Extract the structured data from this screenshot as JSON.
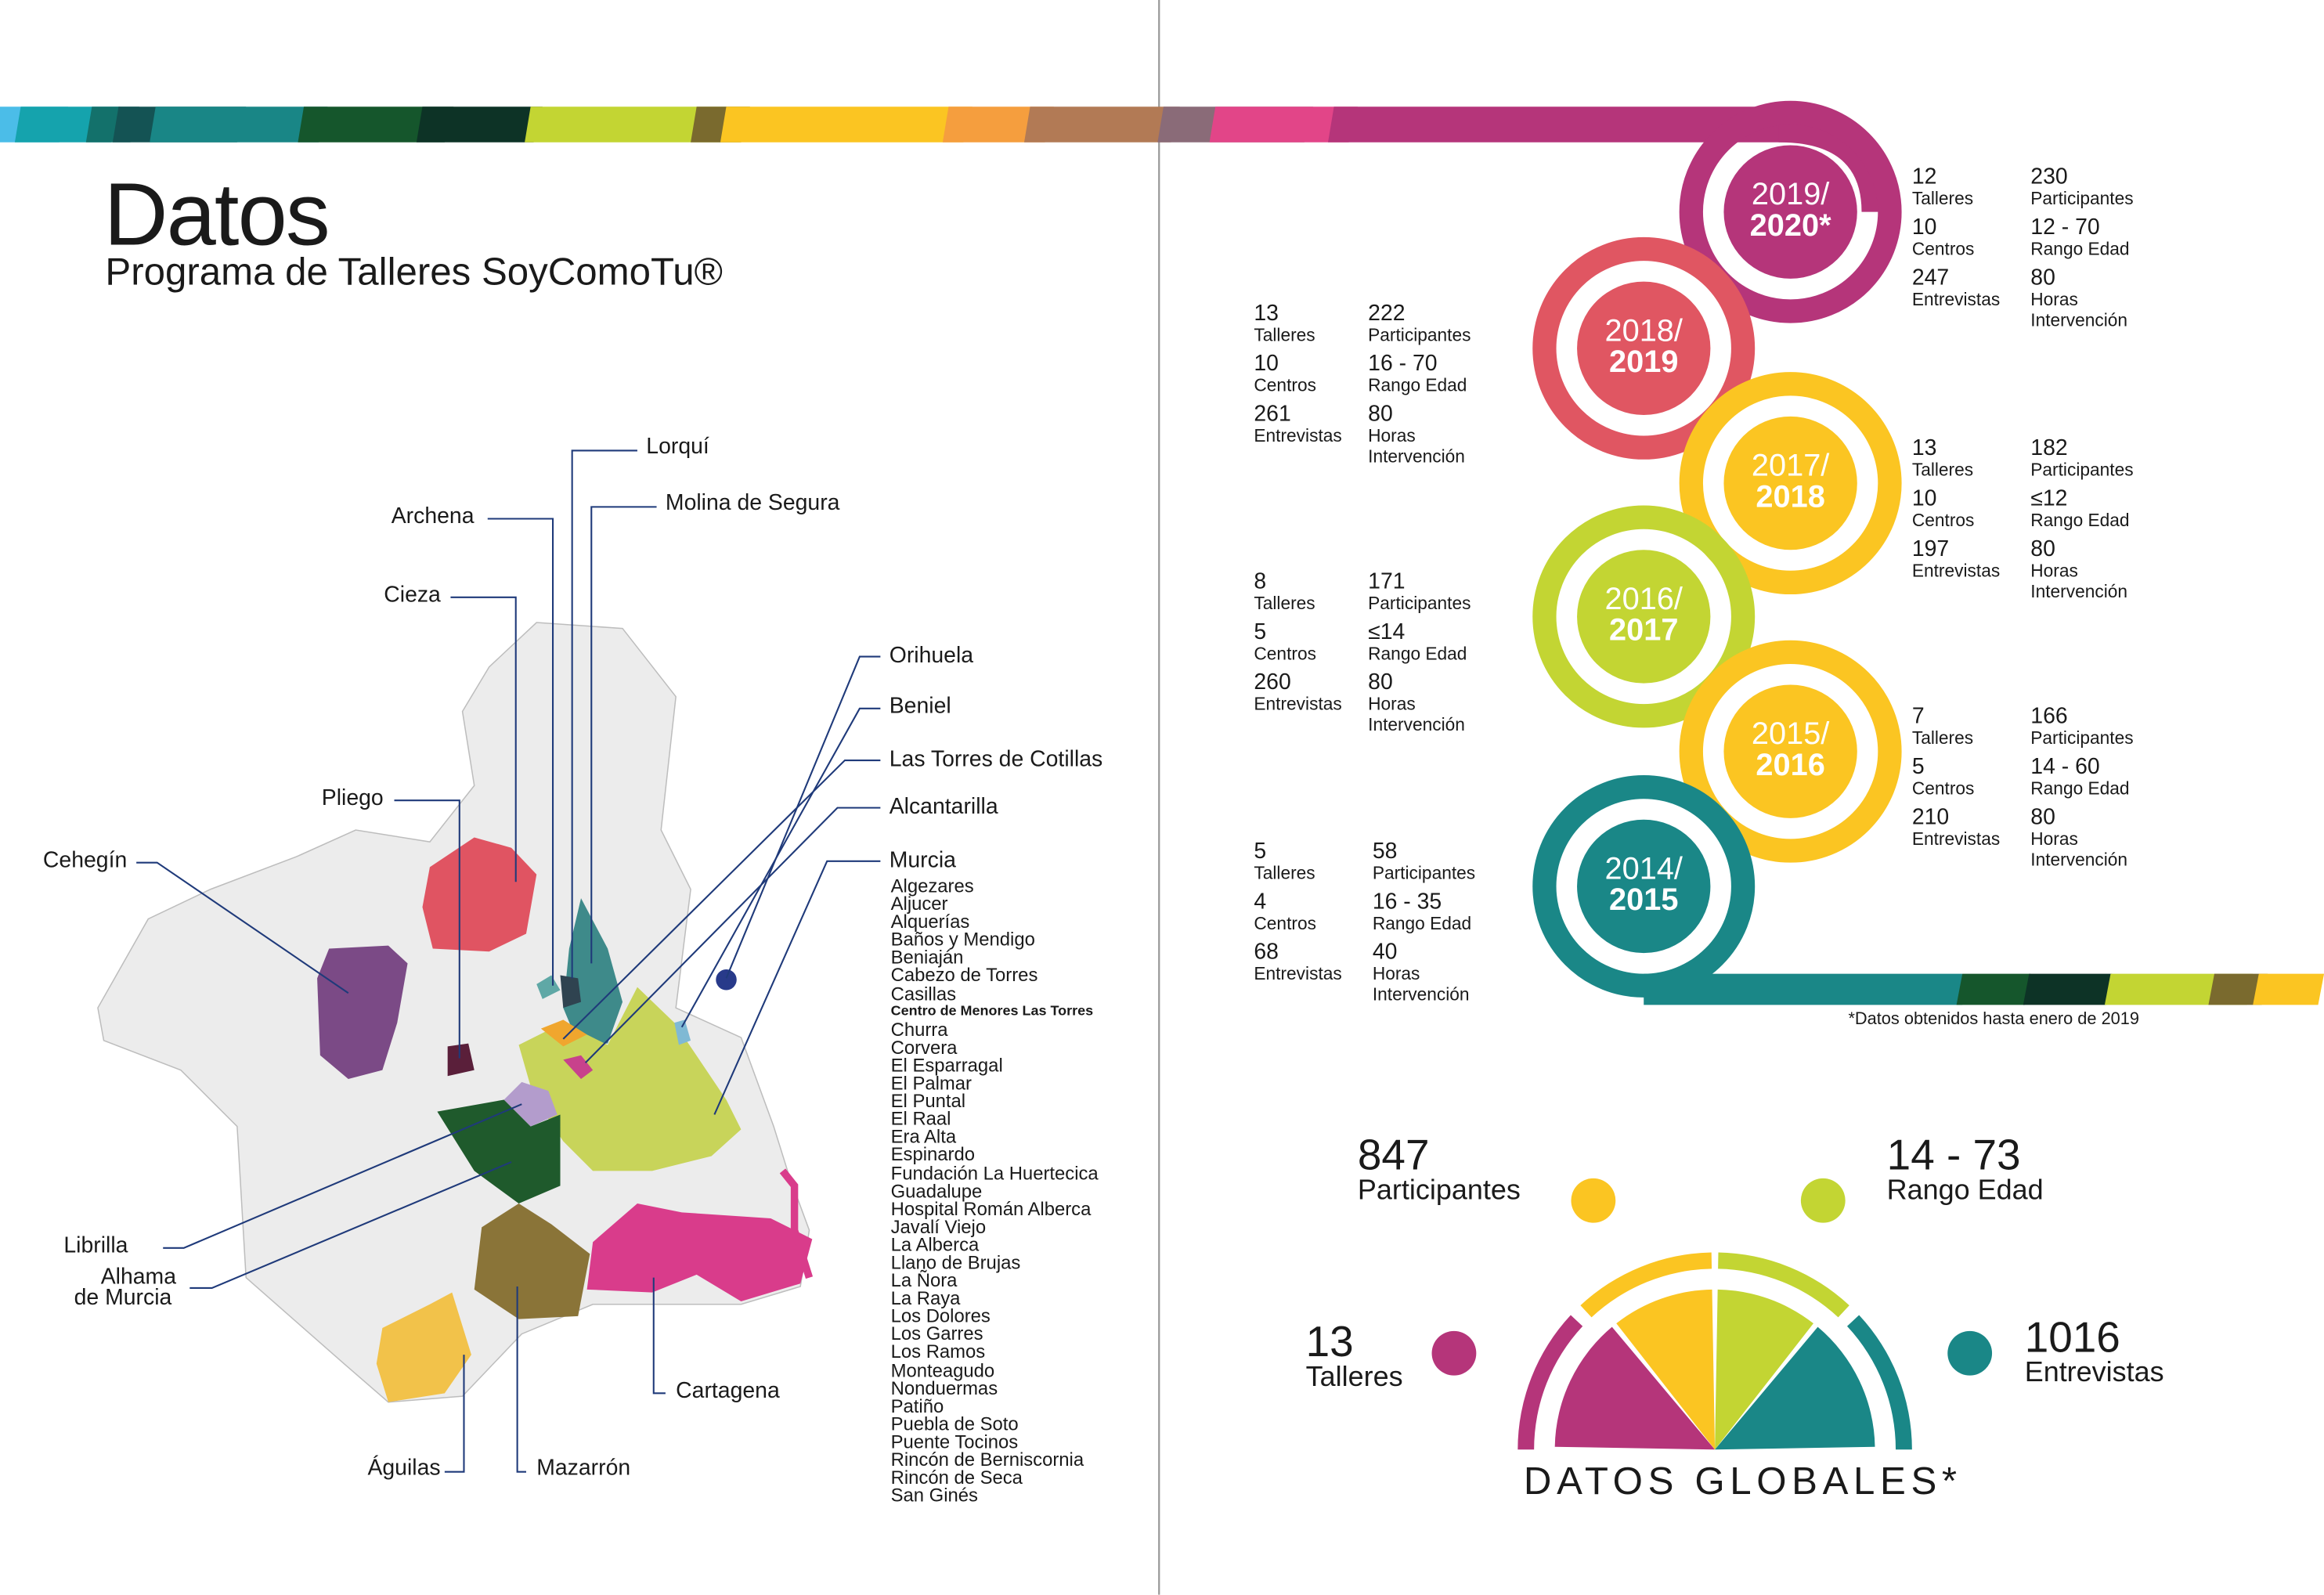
{
  "header": {
    "title": "Datos",
    "subtitle": "Programa de Talleres SoyComoTu®"
  },
  "map": {
    "labels": {
      "lorqui": "Lorquí",
      "molina": "Molina de Segura",
      "archena": "Archena",
      "cieza": "Cieza",
      "pliego": "Pliego",
      "cehegin": "Cehegín",
      "orihuela": "Orihuela",
      "beniel": "Beniel",
      "torres": "Las Torres de Cotillas",
      "alcantarilla": "Alcantarilla",
      "murcia": "Murcia",
      "librilla": "Librilla",
      "alhama1": "Alhama",
      "alhama2": "de Murcia",
      "aguilas": "Águilas",
      "mazarron": "Mazarrón",
      "cartagena": "Cartagena"
    },
    "murcia_pedanias": [
      "Algezares",
      "Aljucer",
      "Alquerías",
      "Baños y Mendigo",
      "Beniaján",
      "Cabezo de Torres",
      "Casillas",
      "Centro de Menores Las Torres",
      "Churra",
      "Corvera",
      "El Esparragal",
      "El Palmar",
      "El Puntal",
      "El Raal",
      "Era Alta",
      "Espinardo",
      "Fundación La Huertecica",
      "Guadalupe",
      "Hospital Román Alberca",
      "Javalí Viejo",
      "La Alberca",
      "Llano de Brujas",
      "La Ñora",
      "La Raya",
      "Los Dolores",
      "Los Garres",
      "Los Ramos",
      "Monteagudo",
      "Nonduermas",
      "Patiño",
      "Puebla de Soto",
      "Puente Tocinos",
      "Rincón de Berniscornia",
      "Rincón de Seca",
      "San Ginés"
    ],
    "colors": {
      "cieza": "#e05462",
      "cehegin": "#7b4a86",
      "pliego": "#5a1f3a",
      "molina": "#3e8a8a",
      "archena": "#5fa8a6",
      "lorqui": "#2f4350",
      "murcia": "#c8d45a",
      "alcantarilla": "#c8428c",
      "torres": "#f0a62e",
      "librilla": "#b39ccc",
      "alhama": "#1f5a2c",
      "mazarron": "#8a7438",
      "cartagena": "#d93c8b",
      "aguilas": "#f2c24a",
      "orihuela": "#283a8a",
      "beniel": "#7fb9d4"
    }
  },
  "timeline": [
    {
      "year1": "2019/",
      "year2": "2020*",
      "color": "#b5357a",
      "stats": {
        "talleres": "12",
        "centros": "10",
        "entrevistas": "247",
        "participantes": "230",
        "rango": "12 - 70",
        "horas": "80"
      }
    },
    {
      "year1": "2018/",
      "year2": "2019",
      "color": "#e05662",
      "stats": {
        "talleres": "13",
        "centros": "10",
        "entrevistas": "261",
        "participantes": "222",
        "rango": "16 - 70",
        "horas": "80"
      }
    },
    {
      "year1": "2017/",
      "year2": "2018",
      "color": "#fbc522",
      "stats": {
        "talleres": "13",
        "centros": "10",
        "entrevistas": "197",
        "participantes": "182",
        "rango": "≤12",
        "horas": "80"
      }
    },
    {
      "year1": "2016/",
      "year2": "2017",
      "color": "#c3d533",
      "stats": {
        "talleres": "8",
        "centros": "5",
        "entrevistas": "260",
        "participantes": "171",
        "rango": "≤14",
        "horas": "80"
      }
    },
    {
      "year1": "2015/",
      "year2": "2016",
      "color": "#fbc522",
      "stats": {
        "talleres": "7",
        "centros": "5",
        "entrevistas": "210",
        "participantes": "166",
        "rango": "14 - 60",
        "horas": "80"
      }
    },
    {
      "year1": "2014/",
      "year2": "2015",
      "color": "#1a8787",
      "stats": {
        "talleres": "5",
        "centros": "4",
        "entrevistas": "68",
        "participantes": "58",
        "rango": "16 - 35",
        "horas": "40"
      }
    }
  ],
  "stat_labels": {
    "talleres": "Talleres",
    "centros": "Centros",
    "entrevistas": "Entrevistas",
    "participantes": "Participantes",
    "rango": "Rango Edad",
    "horas": "Horas Intervención"
  },
  "footnote": "*Datos obtenidos hasta enero de 2019",
  "global": {
    "title": "DATOS GLOBALES*",
    "participantes": {
      "value": "847",
      "label": "Participantes",
      "color": "#fbc522"
    },
    "rango": {
      "value": "14 - 73",
      "label": "Rango Edad",
      "color": "#c3d533"
    },
    "talleres": {
      "value": "13",
      "label": "Talleres",
      "color": "#b5357a"
    },
    "entrevistas": {
      "value": "1016",
      "label": "Entrevistas",
      "color": "#1a8787"
    }
  }
}
